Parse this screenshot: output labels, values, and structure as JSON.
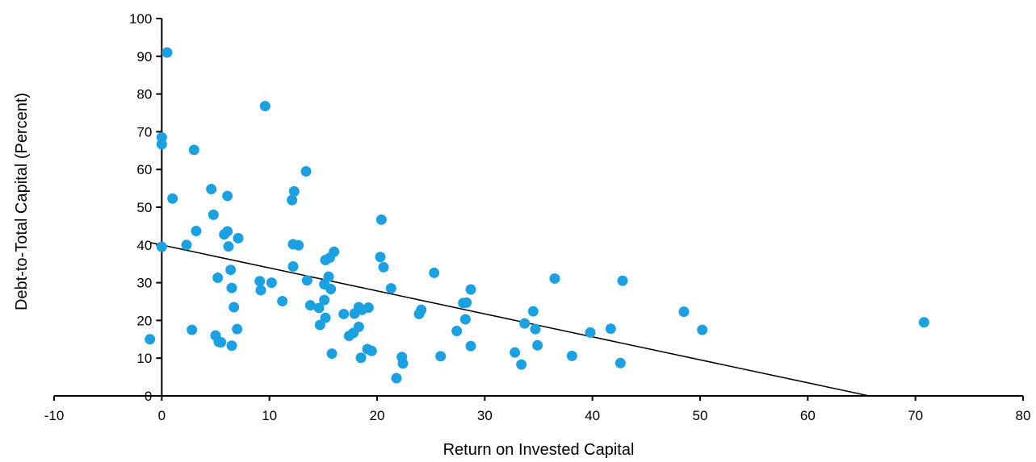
{
  "chart_data": {
    "type": "scatter",
    "xlabel": "Return on Invested Capital",
    "ylabel": "Debt-to-Total Capital (Percent)",
    "xlim": [
      -10,
      80
    ],
    "ylim": [
      0,
      100
    ],
    "x_ticks": [
      -10,
      0,
      10,
      20,
      30,
      40,
      50,
      60,
      70,
      80
    ],
    "y_ticks": [
      0,
      10,
      20,
      30,
      40,
      50,
      60,
      70,
      80,
      90,
      100
    ],
    "grid": false,
    "legend": false,
    "point_color": "#1BA1E2",
    "trendline": {
      "color": "#000000",
      "points": [
        [
          -1,
          40.6
        ],
        [
          65.7,
          0
        ]
      ]
    },
    "points": [
      [
        -1.1,
        15.0
      ],
      [
        0.5,
        91.0
      ],
      [
        0.0,
        68.5
      ],
      [
        0.0,
        66.7
      ],
      [
        0.0,
        39.5
      ],
      [
        1.0,
        52.3
      ],
      [
        2.3,
        40.0
      ],
      [
        2.8,
        17.5
      ],
      [
        3.0,
        65.2
      ],
      [
        3.2,
        43.7
      ],
      [
        4.6,
        54.8
      ],
      [
        4.8,
        48.0
      ],
      [
        5.0,
        16.0
      ],
      [
        5.2,
        31.3
      ],
      [
        5.3,
        14.3
      ],
      [
        5.5,
        14.2
      ],
      [
        5.8,
        42.8
      ],
      [
        6.1,
        43.6
      ],
      [
        6.1,
        53.0
      ],
      [
        6.2,
        39.6
      ],
      [
        6.4,
        33.4
      ],
      [
        6.5,
        28.6
      ],
      [
        6.5,
        13.3
      ],
      [
        6.7,
        23.5
      ],
      [
        7.0,
        17.7
      ],
      [
        7.1,
        41.8
      ],
      [
        9.1,
        30.4
      ],
      [
        9.2,
        28.0
      ],
      [
        9.6,
        76.8
      ],
      [
        10.2,
        30.0
      ],
      [
        11.2,
        25.1
      ],
      [
        12.1,
        51.9
      ],
      [
        12.2,
        40.2
      ],
      [
        12.2,
        34.3
      ],
      [
        12.3,
        54.2
      ],
      [
        12.7,
        39.9
      ],
      [
        13.4,
        59.5
      ],
      [
        13.5,
        30.6
      ],
      [
        13.8,
        24.0
      ],
      [
        14.6,
        23.3
      ],
      [
        14.7,
        18.8
      ],
      [
        15.1,
        25.4
      ],
      [
        15.1,
        29.6
      ],
      [
        15.2,
        36.0
      ],
      [
        15.2,
        20.7
      ],
      [
        15.5,
        31.6
      ],
      [
        15.6,
        36.6
      ],
      [
        15.7,
        28.3
      ],
      [
        15.8,
        11.2
      ],
      [
        16.0,
        38.2
      ],
      [
        16.9,
        21.7
      ],
      [
        17.4,
        15.9
      ],
      [
        17.8,
        16.7
      ],
      [
        17.9,
        21.8
      ],
      [
        18.3,
        23.5
      ],
      [
        18.3,
        18.3
      ],
      [
        18.5,
        10.1
      ],
      [
        18.6,
        22.8
      ],
      [
        19.1,
        12.4
      ],
      [
        19.2,
        23.4
      ],
      [
        19.5,
        11.9
      ],
      [
        20.4,
        46.7
      ],
      [
        20.3,
        36.8
      ],
      [
        20.6,
        34.1
      ],
      [
        21.3,
        28.5
      ],
      [
        21.8,
        4.7
      ],
      [
        22.3,
        10.3
      ],
      [
        22.4,
        8.6
      ],
      [
        23.9,
        21.7
      ],
      [
        24.1,
        22.8
      ],
      [
        25.3,
        32.6
      ],
      [
        25.9,
        10.5
      ],
      [
        27.4,
        17.2
      ],
      [
        28.0,
        24.6
      ],
      [
        28.3,
        24.7
      ],
      [
        28.2,
        20.3
      ],
      [
        28.7,
        28.2
      ],
      [
        28.7,
        13.2
      ],
      [
        32.8,
        11.5
      ],
      [
        33.4,
        8.3
      ],
      [
        33.7,
        19.2
      ],
      [
        34.5,
        22.4
      ],
      [
        34.7,
        17.7
      ],
      [
        34.9,
        13.4
      ],
      [
        36.5,
        31.1
      ],
      [
        38.1,
        10.6
      ],
      [
        39.8,
        16.8
      ],
      [
        41.7,
        17.8
      ],
      [
        42.6,
        8.7
      ],
      [
        42.8,
        30.5
      ],
      [
        48.5,
        22.3
      ],
      [
        50.2,
        17.5
      ],
      [
        70.8,
        19.5
      ]
    ]
  }
}
